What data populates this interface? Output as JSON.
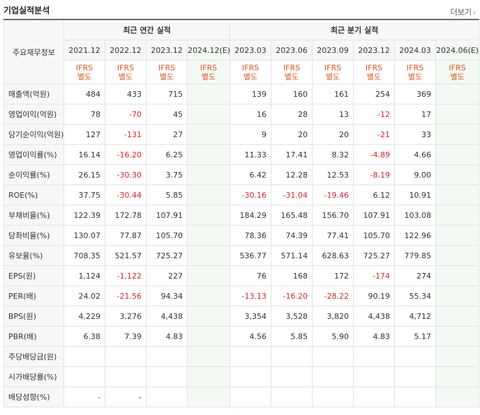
{
  "header": {
    "title": "기업실적분석",
    "more_label": "더보기"
  },
  "table": {
    "label_header": "주요재무정보",
    "annual_group": "최근 연간 실적",
    "quarter_group": "최근 분기 실적",
    "annual_periods": [
      "2021.12",
      "2022.12",
      "2023.12",
      "2024.12(E)"
    ],
    "quarter_periods": [
      "2023.03",
      "2023.06",
      "2023.09",
      "2023.12",
      "2024.03",
      "2024.06(E)"
    ],
    "ifrs_line1": "IFRS",
    "ifrs_line2": "별도",
    "rows": [
      {
        "label": "매출액(억원)",
        "a": [
          "484",
          "433",
          "715",
          ""
        ],
        "q": [
          "139",
          "160",
          "161",
          "254",
          "369",
          ""
        ]
      },
      {
        "label": "영업이익(억원)",
        "a": [
          "78",
          "-70",
          "45",
          ""
        ],
        "q": [
          "16",
          "28",
          "13",
          "-12",
          "17",
          ""
        ]
      },
      {
        "label": "당기순이익(억원)",
        "a": [
          "127",
          "-131",
          "27",
          ""
        ],
        "q": [
          "9",
          "20",
          "20",
          "-21",
          "33",
          ""
        ]
      },
      {
        "label": "영업이익률(%)",
        "a": [
          "16.14",
          "-16.20",
          "6.25",
          ""
        ],
        "q": [
          "11.33",
          "17.41",
          "8.32",
          "-4.89",
          "4.66",
          ""
        ]
      },
      {
        "label": "순이익률(%)",
        "a": [
          "26.15",
          "-30.30",
          "3.75",
          ""
        ],
        "q": [
          "6.42",
          "12.28",
          "12.53",
          "-8.19",
          "9.00",
          ""
        ]
      },
      {
        "label": "ROE(%)",
        "a": [
          "37.75",
          "-30.44",
          "5.85",
          ""
        ],
        "q": [
          "-30.16",
          "-31.04",
          "-19.46",
          "6.12",
          "10.91",
          ""
        ]
      },
      {
        "label": "부채비율(%)",
        "a": [
          "122.39",
          "172.78",
          "107.91",
          ""
        ],
        "q": [
          "184.29",
          "165.48",
          "156.70",
          "107.91",
          "103.08",
          ""
        ]
      },
      {
        "label": "당좌비율(%)",
        "a": [
          "130.07",
          "77.87",
          "105.70",
          ""
        ],
        "q": [
          "78.36",
          "74.39",
          "77.41",
          "105.70",
          "122.96",
          ""
        ]
      },
      {
        "label": "유보율(%)",
        "a": [
          "708.35",
          "521.57",
          "725.27",
          ""
        ],
        "q": [
          "536.77",
          "571.14",
          "628.63",
          "725.27",
          "779.85",
          ""
        ]
      },
      {
        "label": "EPS(원)",
        "a": [
          "1,124",
          "-1,122",
          "227",
          ""
        ],
        "q": [
          "76",
          "168",
          "172",
          "-174",
          "274",
          ""
        ]
      },
      {
        "label": "PER(배)",
        "a": [
          "24.02",
          "-21.56",
          "94.34",
          ""
        ],
        "q": [
          "-13.13",
          "-16.20",
          "-28.22",
          "90.19",
          "55.34",
          ""
        ]
      },
      {
        "label": "BPS(원)",
        "a": [
          "4,229",
          "3,276",
          "4,438",
          ""
        ],
        "q": [
          "3,354",
          "3,528",
          "3,820",
          "4,438",
          "4,712",
          ""
        ]
      },
      {
        "label": "PBR(배)",
        "a": [
          "6.38",
          "7.39",
          "4.83",
          ""
        ],
        "q": [
          "4.56",
          "5.85",
          "5.90",
          "4.83",
          "5.17",
          ""
        ]
      },
      {
        "label": "주당배당금(원)",
        "a": [
          "",
          "",
          "",
          ""
        ],
        "q": [
          "",
          "",
          "",
          "",
          "",
          ""
        ]
      },
      {
        "label": "시가배당률(%)",
        "a": [
          "",
          "",
          "",
          ""
        ],
        "q": [
          "",
          "",
          "",
          "",
          "",
          ""
        ]
      },
      {
        "label": "배당성향(%)",
        "a": [
          "-",
          "-",
          "",
          ""
        ],
        "q": [
          "",
          "",
          "",
          "",
          "",
          ""
        ]
      }
    ],
    "section_starts": [
      0,
      3,
      6,
      9,
      13
    ]
  },
  "colors": {
    "ifrs": "#e0571b",
    "negative": "#d8232a",
    "estimate_bg": "#f3faf3",
    "estimate_tag": "#2a9a3f"
  }
}
